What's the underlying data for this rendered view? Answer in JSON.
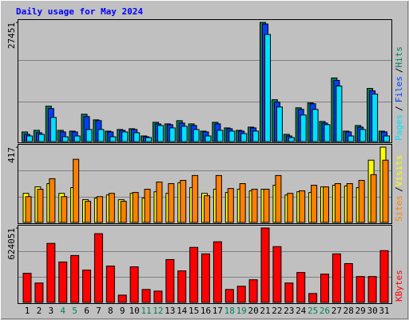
{
  "chart_data": [
    {
      "type": "bar",
      "title": "Daily usage for May 2024",
      "ylim": [
        0,
        27451
      ],
      "yticks": [
        27451
      ],
      "legend_separator": "/",
      "series": [
        {
          "name": "Hits",
          "color": "#00805c",
          "values": [
            2226,
            2597,
            8162,
            2597,
            2412,
            6307,
            5009,
            2412,
            2783,
            2968,
            1298,
            4452,
            4081,
            4823,
            4081,
            2412,
            4452,
            3154,
            2597,
            3339,
            27451,
            9646,
            1670,
            7791,
            8904,
            4638,
            14655,
            2412,
            3710,
            12243,
            2412
          ]
        },
        {
          "name": "Files",
          "color": "#0040ff",
          "values": [
            1670,
            2040,
            7606,
            2226,
            2226,
            5751,
            4823,
            2226,
            2597,
            2783,
            1113,
            4081,
            3896,
            4267,
            3710,
            2226,
            4081,
            2968,
            2412,
            3154,
            27083,
            9090,
            1298,
            7420,
            8719,
            4267,
            14098,
            2226,
            3339,
            11687,
            2226
          ]
        },
        {
          "name": "Pages",
          "color": "#00e0ff",
          "values": [
            1298,
            1670,
            5565,
            1113,
            1298,
            2783,
            2783,
            1113,
            2226,
            2040,
            928,
            3710,
            3154,
            3525,
            2783,
            1298,
            2597,
            2412,
            1855,
            2412,
            24672,
            7977,
            928,
            6122,
            7420,
            3896,
            12800,
            1298,
            2783,
            10945,
            1298
          ]
        }
      ]
    },
    {
      "type": "bar",
      "ylim": [
        0,
        417
      ],
      "yticks": [
        417
      ],
      "legend_separator": "/",
      "series": [
        {
          "name": "Visits",
          "color": "#ffff00",
          "values": [
            161,
            197,
            215,
            161,
            193,
            126,
            135,
            152,
            126,
            161,
            135,
            170,
            161,
            220,
            193,
            161,
            184,
            166,
            184,
            175,
            184,
            206,
            152,
            170,
            166,
            197,
            206,
            202,
            193,
            345,
            417
          ]
        },
        {
          "name": "Sites",
          "color": "#ff8000",
          "values": [
            143,
            184,
            242,
            143,
            350,
            117,
            143,
            161,
            117,
            166,
            184,
            224,
            215,
            233,
            260,
            148,
            260,
            188,
            215,
            184,
            184,
            260,
            161,
            175,
            206,
            197,
            215,
            215,
            233,
            265,
            345
          ]
        }
      ]
    },
    {
      "type": "bar",
      "ylim": [
        0,
        624051
      ],
      "yticks": [
        624051
      ],
      "categories": [
        "1",
        "2",
        "3",
        "4",
        "5",
        "6",
        "7",
        "8",
        "9",
        "10",
        "11",
        "12",
        "13",
        "14",
        "15",
        "16",
        "17",
        "18",
        "19",
        "20",
        "21",
        "22",
        "23",
        "24",
        "25",
        "26",
        "27",
        "28",
        "29",
        "30",
        "31"
      ],
      "label_colors": [
        "#000000",
        "#000000",
        "#000000",
        "#00805c",
        "#00805c",
        "#000000",
        "#000000",
        "#000000",
        "#000000",
        "#000000",
        "#00805c",
        "#00805c",
        "#000000",
        "#000000",
        "#000000",
        "#000000",
        "#000000",
        "#00805c",
        "#00805c",
        "#000000",
        "#000000",
        "#000000",
        "#000000",
        "#000000",
        "#00805c",
        "#00805c",
        "#000000",
        "#000000",
        "#000000",
        "#000000",
        "#000000"
      ],
      "series": [
        {
          "name": "KBytes",
          "color": "#ff0000",
          "values": [
            244188,
            162792,
            495159,
            339150,
            393414,
            271320,
            576555,
            305235,
            61047,
            298452,
            108528,
            94962,
            359499,
            264537,
            461244,
            406980,
            508725,
            108528,
            135660,
            189924,
            624051,
            468027,
            162792,
            250971,
            74613,
            237405,
            406980,
            325584,
            217056,
            217056,
            434112
          ]
        }
      ]
    }
  ]
}
